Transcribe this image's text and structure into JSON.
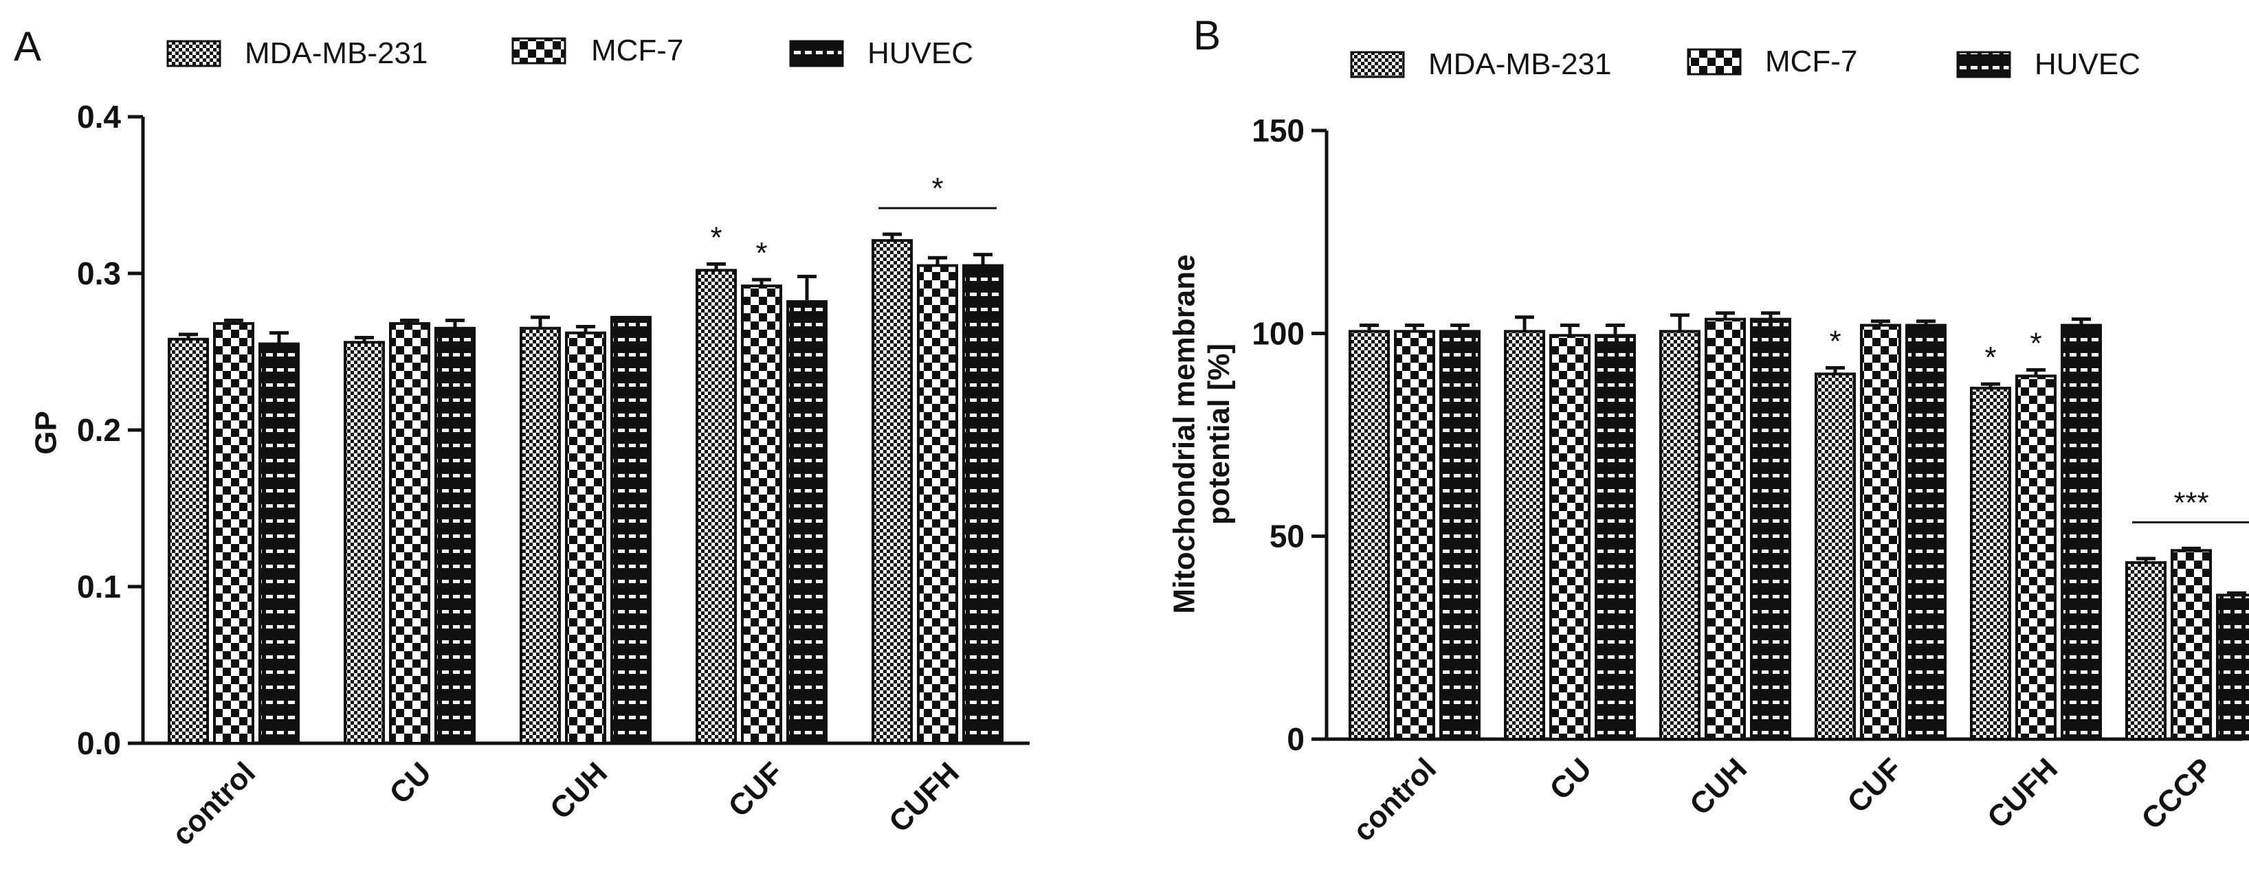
{
  "panels": [
    {
      "letter": "A"
    },
    {
      "letter": "B"
    }
  ],
  "legend": {
    "labels": [
      "MDA-MB-231",
      "MCF-7",
      "HUVEC"
    ]
  },
  "chart_data": [
    {
      "type": "bar",
      "panel": "A",
      "ylabel": "GP",
      "xlabel": "",
      "ylim": [
        0.0,
        0.4
      ],
      "yticks": [
        0.0,
        0.1,
        0.2,
        0.3,
        0.4
      ],
      "ytick_labels": [
        "0.0",
        "0.1",
        "0.2",
        "0.3",
        "0.4"
      ],
      "categories": [
        "control",
        "CU",
        "CUH",
        "CUF",
        "CUFH"
      ],
      "series": [
        {
          "name": "MDA-MB-231",
          "pattern": "fine-checker",
          "values": [
            0.258,
            0.256,
            0.265,
            0.302,
            0.321
          ],
          "errors": [
            0.003,
            0.003,
            0.007,
            0.004,
            0.004
          ]
        },
        {
          "name": "MCF-7",
          "pattern": "coarse-checker",
          "values": [
            0.268,
            0.268,
            0.262,
            0.292,
            0.305
          ],
          "errors": [
            0.002,
            0.002,
            0.004,
            0.004,
            0.005
          ]
        },
        {
          "name": "HUVEC",
          "pattern": "horizontal-stripes",
          "values": [
            0.255,
            0.265,
            0.272,
            0.282,
            0.305
          ],
          "errors": [
            0.007,
            0.005,
            0.0,
            0.016,
            0.007
          ]
        }
      ],
      "annotations": [
        {
          "text": "*",
          "category": "CUF",
          "series": "MDA-MB-231"
        },
        {
          "text": "*",
          "category": "CUF",
          "series": "MCF-7"
        },
        {
          "text": "*",
          "category": "CUFH",
          "bracket": true
        }
      ]
    },
    {
      "type": "bar",
      "panel": "B",
      "ylabel": "Mitochondrial membrane\npotential [%]",
      "xlabel": "",
      "ylim": [
        0,
        150
      ],
      "yticks": [
        0,
        50,
        100,
        150
      ],
      "ytick_labels": [
        "0",
        "50",
        "100",
        "150"
      ],
      "categories": [
        "control",
        "CU",
        "CUH",
        "CUF",
        "CUFH",
        "CCCP"
      ],
      "series": [
        {
          "name": "MDA-MB-231",
          "pattern": "fine-checker",
          "values": [
            100.5,
            100.5,
            100.5,
            90,
            86.5,
            43.5
          ],
          "errors": [
            1.5,
            3.5,
            4,
            1.5,
            1,
            1
          ]
        },
        {
          "name": "MCF-7",
          "pattern": "coarse-checker",
          "values": [
            100.5,
            99.5,
            103.5,
            102,
            89.5,
            46.5
          ],
          "errors": [
            1.5,
            2.5,
            1.5,
            1,
            1.5,
            0.5
          ]
        },
        {
          "name": "HUVEC",
          "pattern": "horizontal-stripes",
          "values": [
            100.5,
            99.5,
            103.5,
            102,
            102,
            35.5
          ],
          "errors": [
            1.5,
            2.5,
            1.5,
            1,
            1.5,
            0.5
          ]
        }
      ],
      "annotations": [
        {
          "text": "*",
          "category": "CUF",
          "series": "MDA-MB-231"
        },
        {
          "text": "*",
          "category": "CUFH",
          "series": "MDA-MB-231"
        },
        {
          "text": "*",
          "category": "CUFH",
          "series": "MCF-7"
        },
        {
          "text": "***",
          "category": "CCCP",
          "bracket": true
        }
      ]
    }
  ]
}
